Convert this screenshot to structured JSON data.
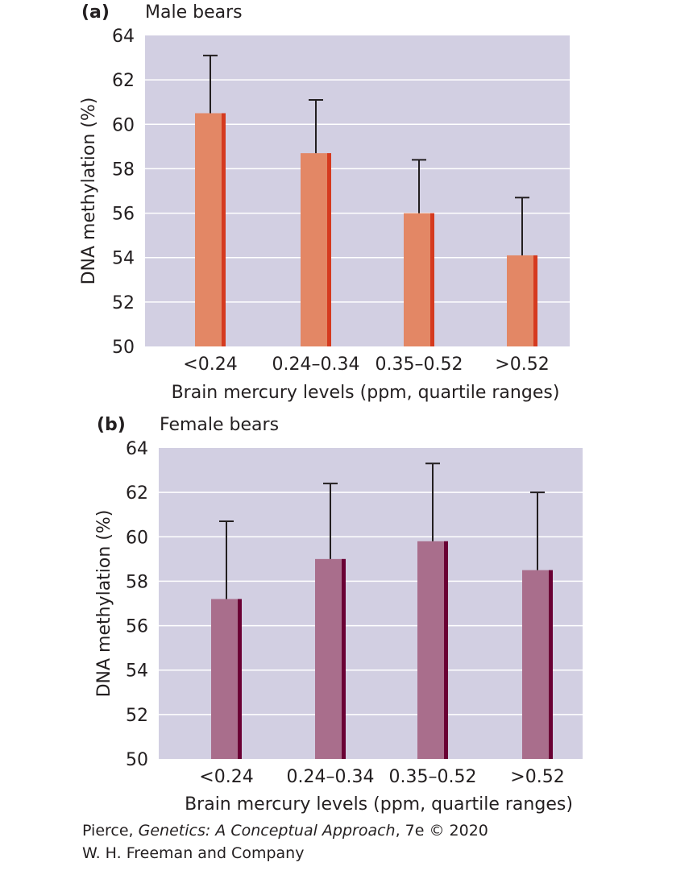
{
  "chart_data": [
    {
      "type": "bar",
      "panel_label": "(a)",
      "title": "Male bears",
      "categories": [
        "<0.24",
        "0.24–0.34",
        "0.35–0.52",
        ">0.52"
      ],
      "values": [
        60.5,
        58.7,
        56.0,
        54.1
      ],
      "error_upper": [
        63.1,
        61.1,
        58.4,
        56.7
      ],
      "xlabel": "Brain mercury levels (ppm, quartile ranges)",
      "ylabel": "DNA methylation (%)",
      "ylim": [
        50,
        64
      ],
      "yticks": [
        50,
        52,
        54,
        56,
        58,
        60,
        62,
        64
      ],
      "grid": true,
      "colors": {
        "bar": "#e38765",
        "bar_edge": "#d53a1f",
        "plot_bg": "#d2cfe2",
        "grid": "#ffffff",
        "error": "#231f20"
      }
    },
    {
      "type": "bar",
      "panel_label": "(b)",
      "title": "Female bears",
      "categories": [
        "<0.24",
        "0.24–0.34",
        "0.35–0.52",
        ">0.52"
      ],
      "values": [
        57.2,
        59.0,
        59.8,
        58.5
      ],
      "error_upper": [
        60.7,
        62.4,
        63.3,
        62.0
      ],
      "xlabel": "Brain mercury levels (ppm, quartile ranges)",
      "ylabel": "DNA methylation (%)",
      "ylim": [
        50,
        64
      ],
      "yticks": [
        50,
        52,
        54,
        56,
        58,
        60,
        62,
        64
      ],
      "grid": true,
      "colors": {
        "bar": "#a96e8c",
        "bar_edge": "#6a0034",
        "plot_bg": "#d2cfe2",
        "grid": "#ffffff",
        "error": "#231f20"
      }
    }
  ],
  "credit": {
    "author": "Pierce, ",
    "book_title": "Genetics: A Conceptual Approach",
    "edition": ", 7e © 2020",
    "publisher": "W. H. Freeman and Company"
  }
}
